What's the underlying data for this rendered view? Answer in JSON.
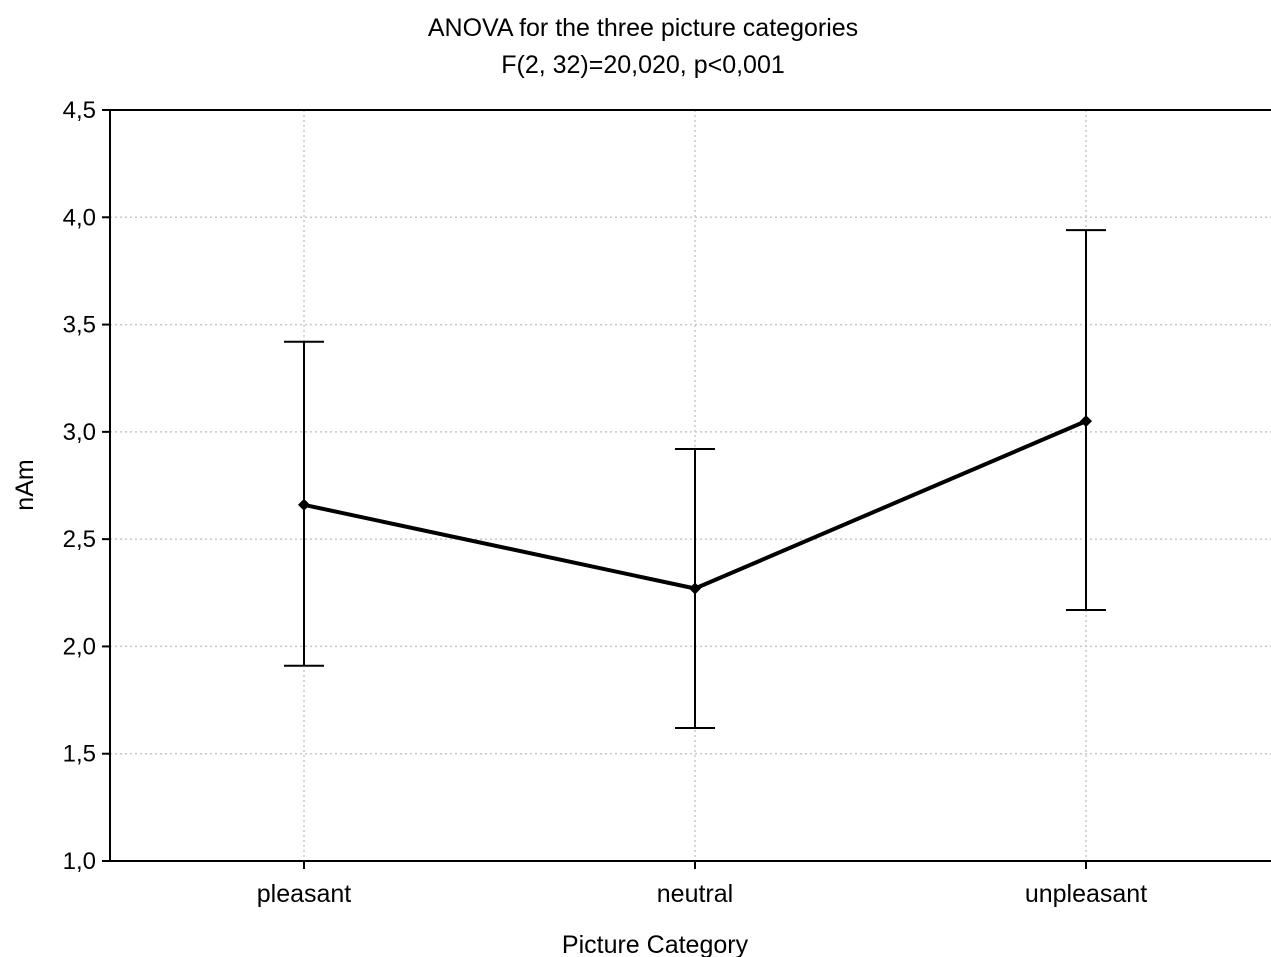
{
  "chart_data": {
    "type": "line",
    "title": "ANOVA for the three picture categories",
    "subtitle": "F(2, 32)=20,020, p<0,001",
    "xlabel": "Picture Category",
    "ylabel": "nAm",
    "categories": [
      "pleasant",
      "neutral",
      "unpleasant"
    ],
    "ylim": [
      1.0,
      4.5
    ],
    "yticks": [
      1.0,
      1.5,
      2.0,
      2.5,
      3.0,
      3.5,
      4.0,
      4.5
    ],
    "ytick_labels": [
      "1,0",
      "1,5",
      "2,0",
      "2,5",
      "3,0",
      "3,5",
      "4,0",
      "4,5"
    ],
    "grid": true,
    "series": [
      {
        "values": [
          2.66,
          2.27,
          3.05
        ],
        "error_low": [
          1.91,
          1.62,
          2.17
        ],
        "error_high": [
          3.42,
          2.92,
          3.94
        ]
      }
    ],
    "line_color": "#000000",
    "grid_color": "#c8c8c8"
  }
}
